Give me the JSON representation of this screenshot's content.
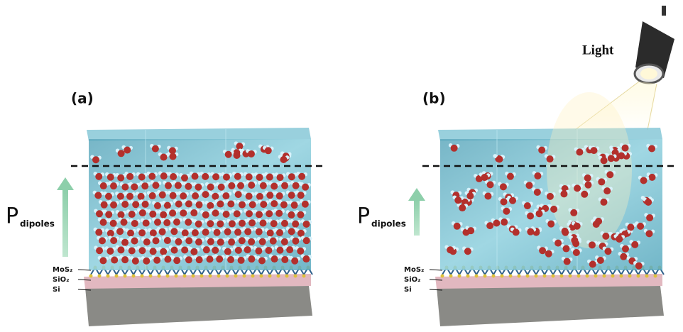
{
  "panels": [
    {
      "label": "(a)",
      "dipole_symbol": "P",
      "dipole_subscript": "dipoles",
      "layers": [
        "MoS₂",
        "SiO₂",
        "Si"
      ]
    },
    {
      "label": "(b)",
      "dipole_symbol": "P",
      "dipole_subscript": "dipoles",
      "layers": [
        "MoS₂",
        "SiO₂",
        "Si"
      ]
    }
  ],
  "light_label": "Light"
}
